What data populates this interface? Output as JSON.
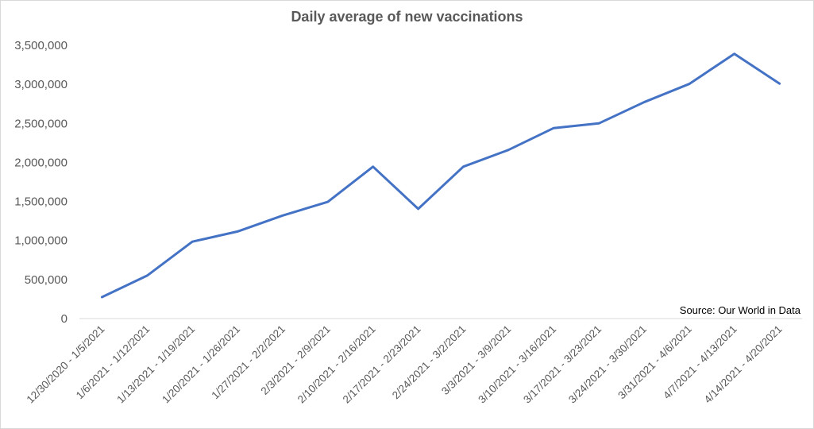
{
  "chart_data": {
    "type": "line",
    "title": "Daily average of new vaccinations",
    "xlabel": "",
    "ylabel": "",
    "ylim": [
      0,
      3500000
    ],
    "y_ticks": [
      "0",
      "500,000",
      "1,000,000",
      "1,500,000",
      "2,000,000",
      "2,500,000",
      "3,000,000",
      "3,500,000"
    ],
    "grid": false,
    "legend": "none",
    "categories": [
      "12/30/2020 - 1/5/2021",
      "1/6/2021 - 1/12/2021",
      "1/13/2021 - 1/19/2021",
      "1/20/2021 - 1/26/2021",
      "1/27/2021 - 2/2/2021",
      "2/3/2021 - 2/9/2021",
      "2/10/2021 - 2/16/2021",
      "2/17/2021 - 2/23/2021",
      "2/24/2021 - 3/2/2021",
      "3/3/2021 - 3/9/2021",
      "3/10/2021 - 3/16/2021",
      "3/17/2021 - 3/23/2021",
      "3/24/2021 - 3/30/2021",
      "3/31/2021 - 4/6/2021",
      "4/7/2021 - 4/13/2021",
      "4/14/2021 - 4/20/2021"
    ],
    "series": [
      {
        "values": [
          275000,
          550000,
          985000,
          1115000,
          1320000,
          1495000,
          1945000,
          1405000,
          1945000,
          2160000,
          2440000,
          2500000,
          2770000,
          3005000,
          3390000,
          3010000
        ],
        "color": "#4472c4"
      }
    ],
    "annotation": "Source: Our World in Data"
  }
}
